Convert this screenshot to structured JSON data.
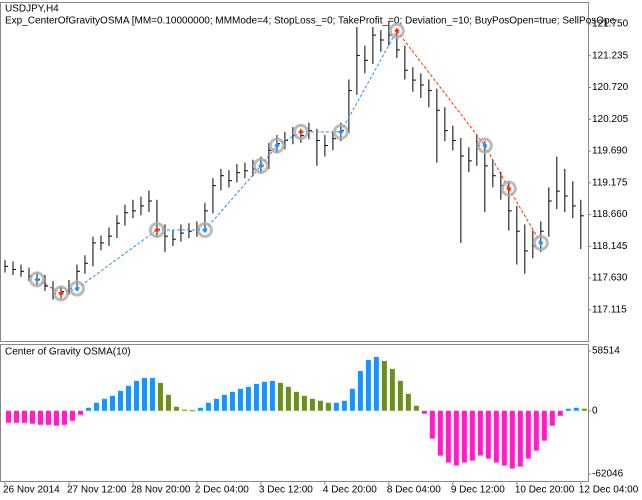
{
  "header": {
    "symbol": "USDJPY,H4",
    "expert": "Exp_CenterOfGravityOSMA [MM=0.10000000; MMMode=4; StopLoss_=0; TakeProfit_=0; Deviation_=10; BuyPosOpen=true; SellPosOpe"
  },
  "chart_data": [
    {
      "type": "ohlc",
      "color": "#000000",
      "xlim": [
        -0.5,
        72.9
      ],
      "ylim": [
        116.61,
        122.09
      ],
      "yticks": [
        {
          "value": 121.75,
          "label": "121.750"
        },
        121.235,
        {
          "value": 120.72,
          "label": "120.720"
        },
        120.205,
        {
          "value": 119.69,
          "label": "119.690"
        },
        119.175,
        {
          "value": 118.66,
          "label": "118.660"
        },
        118.145,
        {
          "value": 117.63,
          "label": "117.630"
        },
        117.115
      ],
      "close": [
        117.82,
        117.77,
        117.74,
        117.66,
        117.61,
        117.5,
        117.38,
        117.41,
        117.46,
        117.74,
        117.87,
        118.2,
        118.2,
        118.31,
        118.52,
        118.69,
        118.72,
        118.8,
        118.88,
        118.42,
        118.31,
        118.26,
        118.36,
        118.39,
        118.42,
        118.72,
        119.13,
        119.29,
        119.21,
        119.34,
        119.37,
        119.4,
        119.45,
        119.7,
        119.81,
        119.86,
        119.94,
        119.94,
        120.02,
        119.86,
        119.78,
        119.89,
        120.02,
        120.67,
        121.24,
        121.16,
        121.57,
        121.49,
        121.57,
        121.33,
        121.0,
        120.84,
        120.76,
        120.67,
        120.35,
        120.02,
        119.86,
        119.61,
        119.53,
        119.78,
        119.45,
        119.29,
        119.13,
        118.72,
        118.39,
        118.07,
        118.15,
        118.39,
        118.88,
        119.04,
        118.96,
        118.8,
        118.64
      ],
      "high": [
        117.92,
        117.9,
        117.85,
        117.8,
        117.72,
        117.68,
        117.58,
        117.5,
        117.6,
        117.85,
        118.0,
        118.3,
        118.32,
        118.45,
        118.65,
        118.82,
        118.9,
        118.95,
        119.05,
        118.9,
        118.5,
        118.4,
        118.5,
        118.52,
        118.55,
        118.85,
        119.25,
        119.4,
        119.38,
        119.48,
        119.5,
        119.55,
        119.6,
        119.82,
        119.95,
        120.0,
        120.08,
        120.05,
        120.15,
        120.05,
        119.95,
        120.0,
        120.15,
        120.85,
        121.7,
        121.4,
        121.7,
        121.65,
        121.8,
        121.6,
        121.4,
        121.05,
        120.95,
        120.85,
        120.7,
        120.4,
        120.1,
        119.9,
        119.75,
        119.95,
        119.85,
        119.55,
        119.35,
        119.2,
        118.8,
        118.5,
        118.4,
        118.55,
        119.1,
        119.6,
        119.4,
        119.2,
        118.9
      ],
      "low": [
        117.72,
        117.68,
        117.65,
        117.58,
        117.52,
        117.42,
        117.28,
        117.3,
        117.36,
        117.42,
        117.7,
        117.82,
        118.08,
        118.15,
        118.28,
        118.48,
        118.6,
        118.65,
        118.7,
        118.3,
        118.05,
        118.15,
        118.22,
        118.28,
        118.3,
        118.38,
        118.68,
        119.05,
        119.1,
        119.18,
        119.25,
        119.28,
        119.32,
        119.4,
        119.65,
        119.72,
        119.8,
        119.82,
        119.88,
        119.45,
        119.6,
        119.7,
        119.85,
        119.98,
        120.6,
        120.95,
        121.1,
        121.3,
        121.4,
        121.2,
        120.85,
        120.65,
        120.55,
        120.4,
        119.5,
        119.85,
        119.7,
        118.2,
        119.35,
        119.45,
        118.7,
        119.1,
        118.9,
        118.4,
        117.85,
        117.7,
        117.95,
        118.05,
        118.3,
        118.75,
        118.7,
        118.6,
        118.1
      ],
      "signals": {
        "x": [
          4,
          7,
          9,
          19,
          25,
          32,
          34,
          37,
          42,
          49,
          60,
          63,
          67
        ],
        "values": [
          117.61,
          117.38,
          117.46,
          118.41,
          118.41,
          119.45,
          119.78,
          120,
          120,
          121.64,
          119.78,
          119.08,
          118.2
        ],
        "colors": [
          "#1e90ff",
          "#ff3300",
          "#1e90ff",
          "#ff3300",
          "#1e90ff",
          "#1e90ff",
          "#1e90ff",
          "#ff3300",
          "#1e90ff",
          "#ff3300",
          "#1e90ff",
          "#ff3300",
          "#1e90ff"
        ]
      },
      "line_colors": {
        "up": "#1e90ff",
        "down": "#ff3300"
      }
    },
    {
      "type": "bar",
      "title": "Center of Gravity OSMA(10)",
      "xlim": [
        -0.5,
        72.9
      ],
      "ylim": [
        -68800,
        64400
      ],
      "yticks": [
        58514,
        0,
        -62046
      ],
      "colors": {
        "rising": "#1e90ff",
        "falling": "#6b8e23",
        "negative": "#ff1dc6"
      },
      "values": [
        -11700,
        -11700,
        -11700,
        -12700,
        -13700,
        -13700,
        -14600,
        -13700,
        -9800,
        -3900,
        2900,
        7800,
        11700,
        14600,
        19500,
        24400,
        29300,
        32200,
        32200,
        27300,
        15600,
        3900,
        1000,
        500,
        2900,
        7800,
        11700,
        15600,
        18500,
        21500,
        23400,
        26300,
        28300,
        29300,
        27300,
        23400,
        18500,
        14600,
        11700,
        9800,
        7800,
        7800,
        9800,
        21500,
        39000,
        49700,
        52700,
        48800,
        41000,
        29300,
        16600,
        4900,
        -2900,
        -27300,
        -43900,
        -50700,
        -53600,
        -50700,
        -48800,
        -43900,
        -46800,
        -50700,
        -53600,
        -56600,
        -54600,
        -46800,
        -39000,
        -29300,
        -14600,
        -4900,
        2000,
        2900,
        2000
      ],
      "xticks": [
        {
          "value": 0,
          "label": "26 Nov 2014"
        },
        {
          "value": 8,
          "label": "27 Nov 12:00"
        },
        {
          "value": 16,
          "label": "28 Nov 20:00"
        },
        {
          "value": 24,
          "label": "2 Dec 04:00"
        },
        {
          "value": 32,
          "label": "3 Dec 12:00"
        },
        {
          "value": 40,
          "label": "4 Dec 20:00"
        },
        {
          "value": 48,
          "label": "8 Dec 04:00"
        },
        {
          "value": 56,
          "label": "9 Dec 12:00"
        },
        {
          "value": 64,
          "label": "10 Dec 20:00"
        },
        {
          "value": 72,
          "label": "12 Dec 04:00"
        }
      ]
    }
  ]
}
